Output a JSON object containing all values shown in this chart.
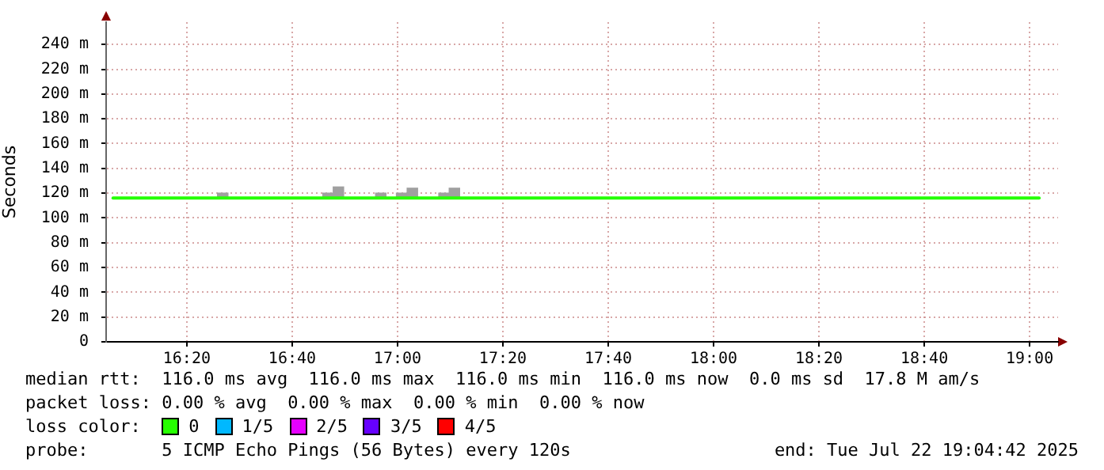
{
  "chart_data": {
    "type": "line",
    "ylabel": "Seconds",
    "xlim": [
      16.078,
      19.09
    ],
    "xticks": [
      {
        "value": 16.3333,
        "label": "16:20"
      },
      {
        "value": 16.6667,
        "label": "16:40"
      },
      {
        "value": 17,
        "label": "17:00"
      },
      {
        "value": 17.3333,
        "label": "17:20"
      },
      {
        "value": 17.6667,
        "label": "17:40"
      },
      {
        "value": 18,
        "label": "18:00"
      },
      {
        "value": 18.3333,
        "label": "18:20"
      },
      {
        "value": 18.6667,
        "label": "18:40"
      },
      {
        "value": 19,
        "label": "19:00"
      }
    ],
    "ylim": [
      0,
      258
    ],
    "yticks": [
      0,
      {
        "value": 20,
        "label": "20 m"
      },
      {
        "value": 40,
        "label": "40 m"
      },
      {
        "value": 60,
        "label": "60 m"
      },
      {
        "value": 80,
        "label": "80 m"
      },
      {
        "value": 100,
        "label": "100 m"
      },
      {
        "value": 120,
        "label": "120 m"
      },
      {
        "value": 140,
        "label": "140 m"
      },
      {
        "value": 160,
        "label": "160 m"
      },
      {
        "value": 180,
        "label": "180 m"
      },
      {
        "value": 200,
        "label": "200 m"
      },
      {
        "value": 220,
        "label": "220 m"
      },
      {
        "value": 240,
        "label": "240 m"
      }
    ],
    "grid": true,
    "legend": "bottom",
    "legend_title": "loss color:",
    "series": [
      {
        "type": "bar",
        "color": "#a0a0a0",
        "x": [
          16.447,
          16.78,
          16.813,
          16.947,
          17.013,
          17.047,
          17.147,
          17.18
        ],
        "base": [
          116,
          116,
          116,
          116,
          116,
          116,
          116,
          116
        ],
        "values": [
          4,
          4,
          9,
          4,
          4,
          8,
          4,
          8
        ]
      },
      {
        "name": "0",
        "color": "#26ff00",
        "x": [
          16.1,
          19.03
        ],
        "values": [
          116,
          116
        ]
      },
      {
        "name": "1/5",
        "color": "#00b8ff"
      },
      {
        "name": "2/5",
        "color": "#e600ff"
      },
      {
        "name": "3/5",
        "color": "#6600ff"
      },
      {
        "name": "4/5",
        "color": "#ff0000"
      }
    ],
    "annotations": [
      "median rtt:  116.0 ms avg  116.0 ms max  116.0 ms min  116.0 ms now  0.0 ms sd  17.8 M am/s",
      "packet loss: 0.00 % avg  0.00 % max  0.00 % min  0.00 % now",
      "probe:       5 ICMP Echo Pings (56 Bytes) every 120s",
      "end: Tue Jul 22 19:04:42 2025"
    ]
  }
}
